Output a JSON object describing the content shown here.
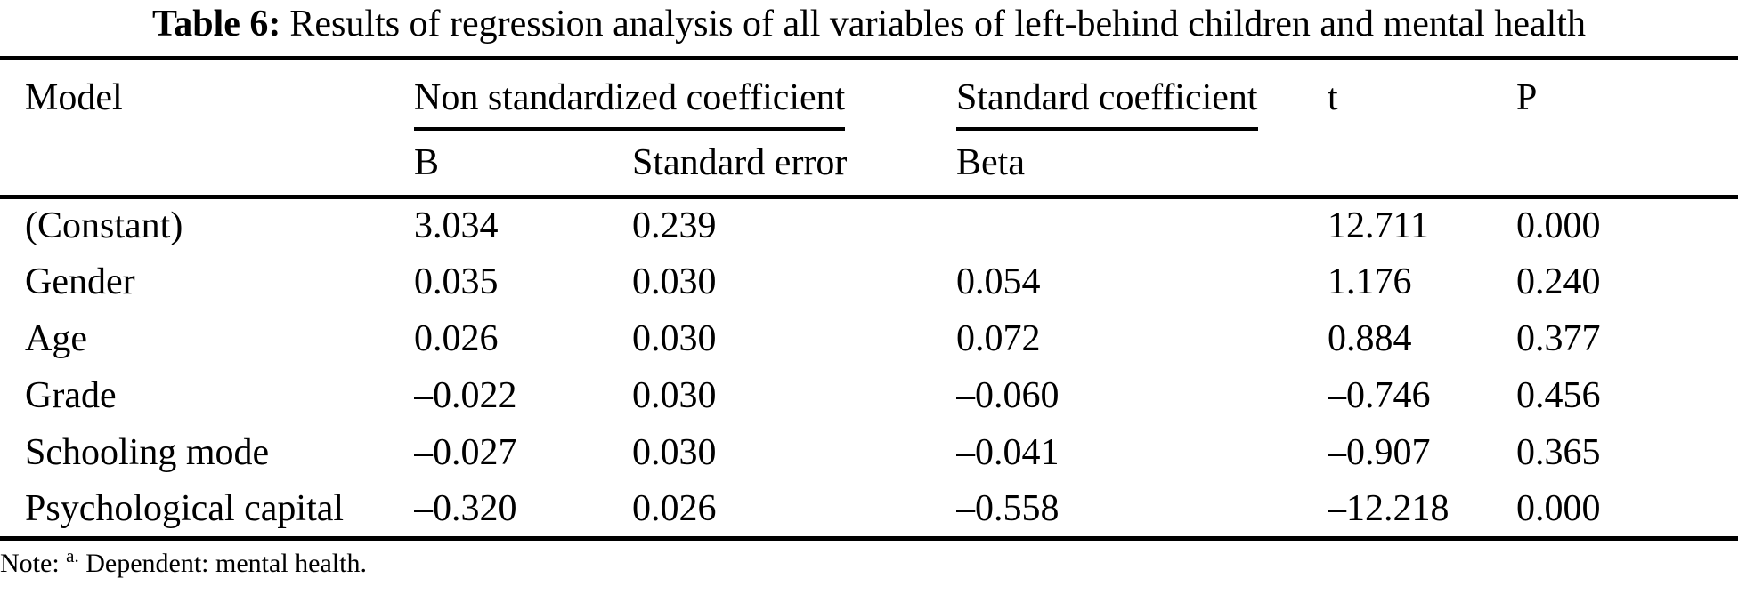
{
  "table": {
    "caption": {
      "label": "Table 6:",
      "text": "Results of regression analysis of all variables of left-behind children and mental health"
    },
    "headers": {
      "model": "Model",
      "group_nonstd": "Non standardized coefficient",
      "group_std": "Standard coefficient",
      "t": "t",
      "p": "P",
      "sub_b": "B",
      "sub_se": "Standard error",
      "sub_beta": "Beta"
    },
    "rows": [
      {
        "model": "(Constant)",
        "b": "3.034",
        "se": "0.239",
        "beta": "",
        "t": "12.711",
        "p": "0.000"
      },
      {
        "model": "Gender",
        "b": "0.035",
        "se": "0.030",
        "beta": "0.054",
        "t": "1.176",
        "p": "0.240"
      },
      {
        "model": "Age",
        "b": "0.026",
        "se": "0.030",
        "beta": "0.072",
        "t": "0.884",
        "p": "0.377"
      },
      {
        "model": "Grade",
        "b": "–0.022",
        "se": "0.030",
        "beta": "–0.060",
        "t": "–0.746",
        "p": "0.456"
      },
      {
        "model": "Schooling mode",
        "b": "–0.027",
        "se": "0.030",
        "beta": "–0.041",
        "t": "–0.907",
        "p": "0.365"
      },
      {
        "model": "Psychological capital",
        "b": "–0.320",
        "se": "0.026",
        "beta": "–0.558",
        "t": "–12.218",
        "p": "0.000"
      }
    ],
    "note": {
      "prefix": "Note:",
      "sup": "a.",
      "text": "Dependent: mental health."
    },
    "colors": {
      "text": "#000000",
      "background": "#ffffff",
      "rule": "#000000"
    }
  }
}
